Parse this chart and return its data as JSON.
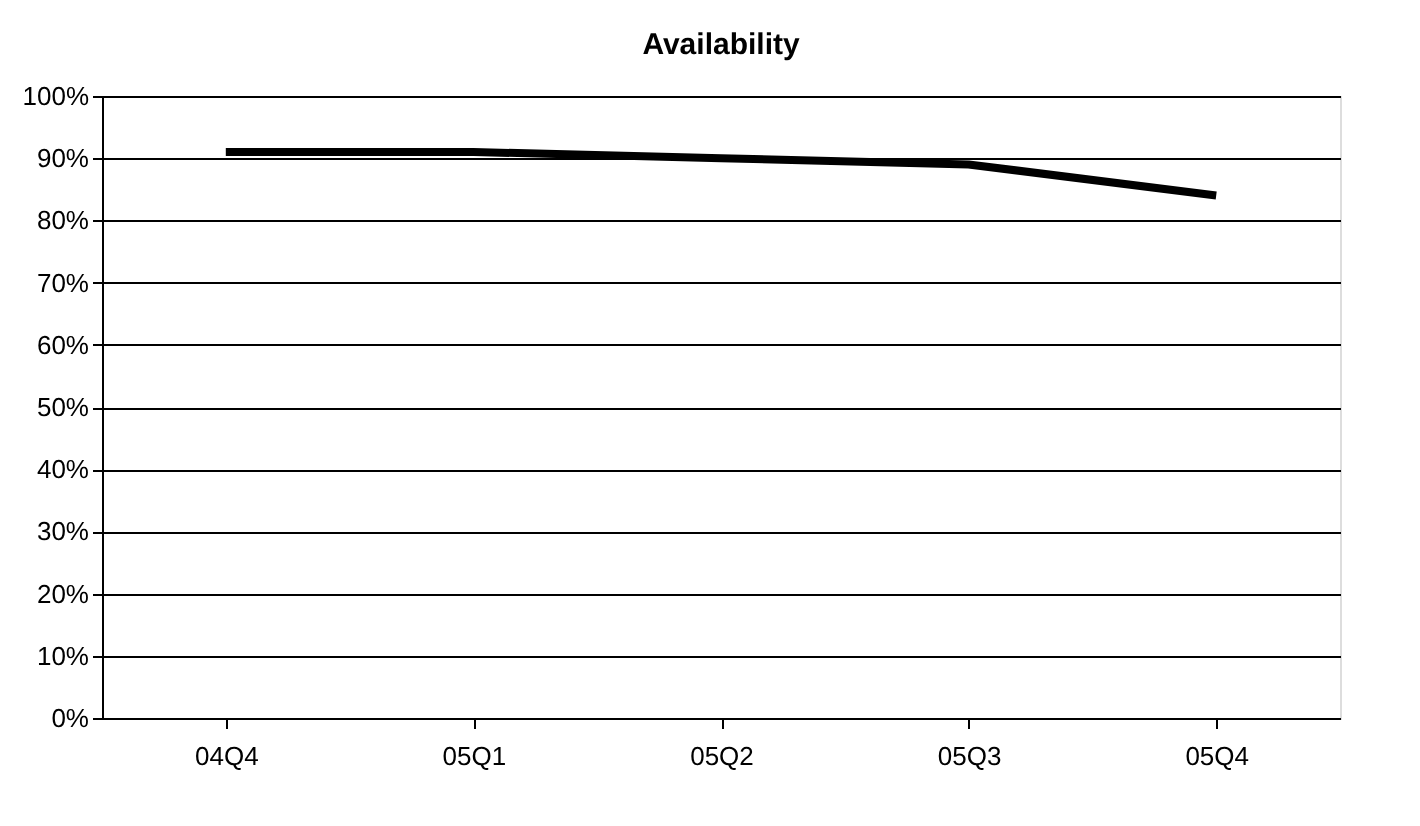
{
  "chart_data": {
    "type": "line",
    "title": "Availability",
    "categories": [
      "04Q4",
      "05Q1",
      "05Q2",
      "05Q3",
      "05Q4"
    ],
    "series": [
      {
        "color": "#000000",
        "values": [
          91,
          91,
          90,
          89,
          84
        ]
      }
    ],
    "ylim": [
      0,
      100
    ],
    "yticks": [
      {
        "value": 0,
        "label": "0%"
      },
      {
        "value": 10,
        "label": "10%"
      },
      {
        "value": 20,
        "label": "20%"
      },
      {
        "value": 30,
        "label": "30%"
      },
      {
        "value": 40,
        "label": "40%"
      },
      {
        "value": 50,
        "label": "50%"
      },
      {
        "value": 60,
        "label": "60%"
      },
      {
        "value": 70,
        "label": "70%"
      },
      {
        "value": 80,
        "label": "80%"
      },
      {
        "value": 90,
        "label": "90%"
      },
      {
        "value": 100,
        "label": "100%"
      }
    ],
    "grid": "y",
    "marker": "none",
    "line_style": "solid"
  }
}
